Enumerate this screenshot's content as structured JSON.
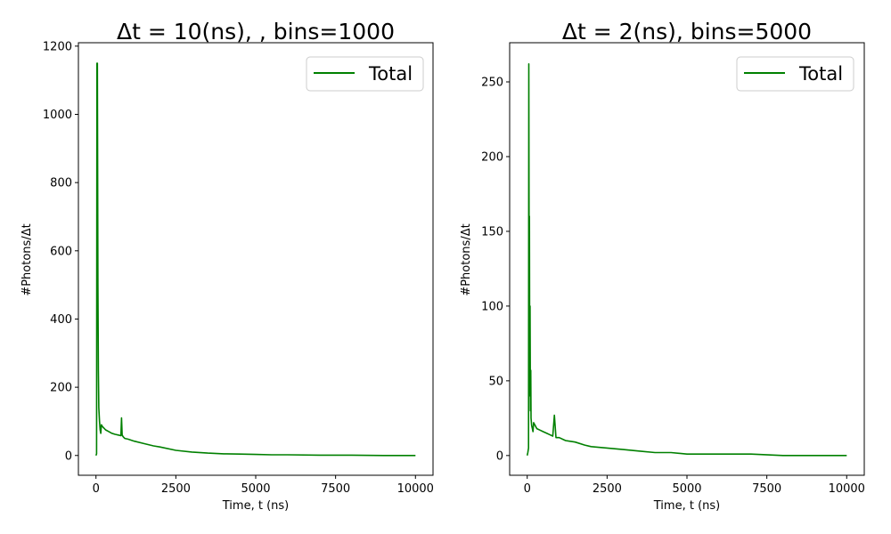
{
  "chart_data": [
    {
      "type": "line",
      "title": "Δt = 10(ns), , bins=1000",
      "xlabel": "Time, t (ns)",
      "ylabel": "#Photons/Δt",
      "xlim": [
        -550,
        10550
      ],
      "ylim": [
        -58,
        1210
      ],
      "xticks": [
        0,
        2500,
        5000,
        7500,
        10000
      ],
      "yticks": [
        0,
        200,
        400,
        600,
        800,
        1000,
        1200
      ],
      "grid": false,
      "legend": "top-right",
      "series": [
        {
          "name": "Total",
          "color": "#008000",
          "x": [
            0,
            20,
            30,
            45,
            60,
            75,
            90,
            110,
            130,
            150,
            170,
            200,
            250,
            300,
            400,
            500,
            600,
            700,
            780,
            800,
            820,
            850,
            900,
            1000,
            1200,
            1500,
            1800,
            2000,
            2500,
            3000,
            3500,
            4000,
            4500,
            5000,
            5500,
            6000,
            7000,
            8000,
            9000,
            10000
          ],
          "y": [
            0,
            5,
            1150,
            1150,
            500,
            250,
            140,
            100,
            75,
            65,
            90,
            85,
            80,
            75,
            70,
            65,
            62,
            60,
            58,
            110,
            60,
            55,
            50,
            48,
            42,
            35,
            28,
            25,
            15,
            10,
            7,
            5,
            4,
            3,
            2,
            2,
            1,
            1,
            0,
            0
          ]
        }
      ]
    },
    {
      "type": "line",
      "title": "Δt = 2(ns), bins=5000",
      "xlabel": "Time, t (ns)",
      "ylabel": "#Photons/Δt",
      "xlim": [
        -550,
        10550
      ],
      "ylim": [
        -13.2,
        276.2
      ],
      "xticks": [
        0,
        2500,
        5000,
        7500,
        10000
      ],
      "yticks": [
        0,
        50,
        100,
        150,
        200,
        250
      ],
      "grid": false,
      "legend": "top-right",
      "series": [
        {
          "name": "Total",
          "color": "#008000",
          "x": [
            0,
            20,
            40,
            50,
            60,
            70,
            80,
            90,
            100,
            110,
            120,
            140,
            160,
            180,
            200,
            250,
            300,
            400,
            500,
            600,
            700,
            800,
            850,
            900,
            1000,
            1200,
            1500,
            1800,
            2000,
            2500,
            3000,
            3500,
            4000,
            4500,
            5000,
            6000,
            7000,
            8000,
            9000,
            10000
          ],
          "y": [
            0,
            2,
            5,
            262,
            120,
            160,
            40,
            100,
            30,
            57,
            25,
            20,
            18,
            16,
            22,
            20,
            18,
            17,
            16,
            15,
            14,
            13,
            27,
            12,
            12,
            10,
            9,
            7,
            6,
            5,
            4,
            3,
            2,
            2,
            1,
            1,
            1,
            0,
            0,
            0
          ]
        }
      ]
    }
  ]
}
